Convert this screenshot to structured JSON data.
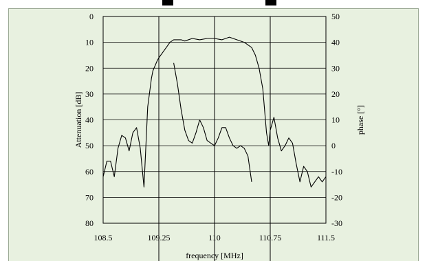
{
  "chart_data": {
    "type": "line",
    "title": "",
    "xlabel": "frequency [MHz]",
    "ylabel": "Attenuation [dB]",
    "y2label": "phase [°]",
    "xlim": [
      108.5,
      111.5
    ],
    "ylim": [
      80,
      0
    ],
    "y2lim": [
      -30,
      50
    ],
    "x_ticks": [
      {
        "value": 108.5,
        "label": "108.5"
      },
      {
        "value": 109.25,
        "label": "109.25"
      },
      {
        "value": 110,
        "label": "110"
      },
      {
        "value": 110.75,
        "label": "110.75"
      },
      {
        "value": 111.5,
        "label": "111.5"
      }
    ],
    "y_ticks": [
      {
        "value": 0,
        "label": "0"
      },
      {
        "value": 10,
        "label": "10"
      },
      {
        "value": 20,
        "label": "20"
      },
      {
        "value": 30,
        "label": "30"
      },
      {
        "value": 40,
        "label": "40"
      },
      {
        "value": 50,
        "label": "50"
      },
      {
        "value": 60,
        "label": "60"
      },
      {
        "value": 70,
        "label": "70"
      },
      {
        "value": 80,
        "label": "80"
      }
    ],
    "y2_ticks": [
      {
        "value": 50,
        "label": "50"
      },
      {
        "value": 40,
        "label": "40"
      },
      {
        "value": 30,
        "label": "30"
      },
      {
        "value": 20,
        "label": "20"
      },
      {
        "value": 10,
        "label": "10"
      },
      {
        "value": 0,
        "label": "0"
      },
      {
        "value": -10,
        "label": "-10"
      },
      {
        "value": -20,
        "label": "-20"
      },
      {
        "value": -30,
        "label": "-30"
      }
    ],
    "grid": {
      "vertical_at": [
        109.25,
        110,
        110.75
      ],
      "horizontal": true
    },
    "series": [
      {
        "axis": "left",
        "x": [
          108.5,
          108.55,
          108.6,
          108.65,
          108.7,
          108.75,
          108.8,
          108.85,
          108.9,
          108.95,
          109.0,
          109.05,
          109.1,
          109.15,
          109.17,
          109.2,
          109.23,
          109.25,
          109.3,
          109.35,
          109.4,
          109.45,
          109.5,
          109.55,
          109.6,
          109.7,
          109.8,
          109.9,
          110.0,
          110.1,
          110.2,
          110.3,
          110.4,
          110.5,
          110.55,
          110.6,
          110.65,
          110.7,
          110.73,
          110.75,
          110.8,
          110.85,
          110.9,
          110.95,
          111.0,
          111.05,
          111.1,
          111.15,
          111.2,
          111.25,
          111.3,
          111.35,
          111.4,
          111.45,
          111.5
        ],
        "y": [
          62,
          56,
          56,
          62,
          51,
          46,
          47,
          52,
          45,
          43,
          51,
          66,
          35,
          24,
          21,
          19,
          17,
          16,
          14,
          12,
          10,
          9,
          9,
          9,
          9.5,
          8.5,
          9,
          8.5,
          8.5,
          9,
          8,
          9,
          10,
          12,
          15,
          20,
          28,
          45,
          50,
          44,
          39,
          47,
          52,
          50,
          47,
          49,
          57,
          64,
          58,
          60,
          66,
          64,
          62,
          64,
          62
        ]
      },
      {
        "axis": "right",
        "x": [
          109.45,
          109.5,
          109.55,
          109.6,
          109.65,
          109.7,
          109.75,
          109.8,
          109.85,
          109.9,
          109.95,
          110.0,
          110.05,
          110.1,
          110.15,
          110.2,
          110.25,
          110.3,
          110.35,
          110.4,
          110.45,
          110.5
        ],
        "y": [
          32,
          24,
          14,
          6,
          2,
          1,
          5,
          10,
          7,
          2,
          1,
          0,
          3,
          7,
          7,
          3,
          0,
          -1,
          0,
          -1,
          -4,
          -14
        ]
      }
    ]
  }
}
